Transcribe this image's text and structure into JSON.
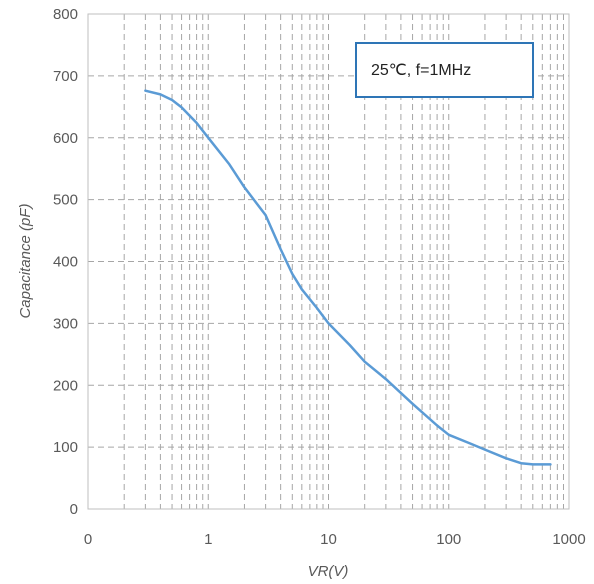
{
  "chart_data": {
    "type": "line",
    "xlabel": "VR(V)",
    "ylabel": "Capacitance (pF)",
    "x_scale": "log",
    "xlim": [
      0.1,
      1000
    ],
    "ylim": [
      0,
      800
    ],
    "x_ticks": [
      "0",
      "1",
      "10",
      "100",
      "1000"
    ],
    "y_ticks": [
      "0",
      "100",
      "200",
      "300",
      "400",
      "500",
      "600",
      "700",
      "800"
    ],
    "grid": true,
    "annotation": "25℃, f=1MHz",
    "colors": {
      "line": "#5b9bd5",
      "grid": "#a6a6a6",
      "annotation_border": "#2e75b6"
    },
    "series": [
      {
        "x": [
          0.3,
          0.4,
          0.5,
          0.6,
          0.8,
          1,
          1.5,
          2,
          3,
          4,
          5,
          6,
          8,
          10,
          15,
          20,
          30,
          50,
          80,
          100,
          150,
          200,
          300,
          400,
          500,
          700
        ],
        "y": [
          676,
          670,
          661,
          649,
          624,
          600,
          557,
          520,
          475,
          420,
          380,
          355,
          325,
          300,
          265,
          238,
          210,
          170,
          135,
          120,
          106,
          96,
          82,
          74,
          72,
          72
        ]
      }
    ]
  }
}
